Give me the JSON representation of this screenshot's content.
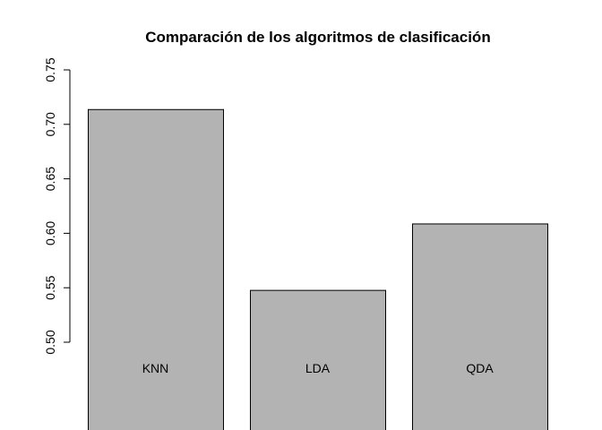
{
  "chart_data": {
    "type": "bar",
    "title": "Comparación de los algoritmos de clasificación",
    "xlabel": "",
    "ylabel": "",
    "categories": [
      "KNN",
      "LDA",
      "QDA"
    ],
    "values": [
      0.714,
      0.548,
      0.609
    ],
    "ylim": [
      0.5,
      0.75
    ],
    "yticks": [
      0.5,
      0.55,
      0.6,
      0.65,
      0.7,
      0.75
    ],
    "ytick_labels": [
      "0.50",
      "0.55",
      "0.60",
      "0.65",
      "0.70",
      "0.75"
    ],
    "grid": false,
    "legend": "none",
    "bar_color": "#b3b3b3",
    "border_color": "#000000"
  }
}
